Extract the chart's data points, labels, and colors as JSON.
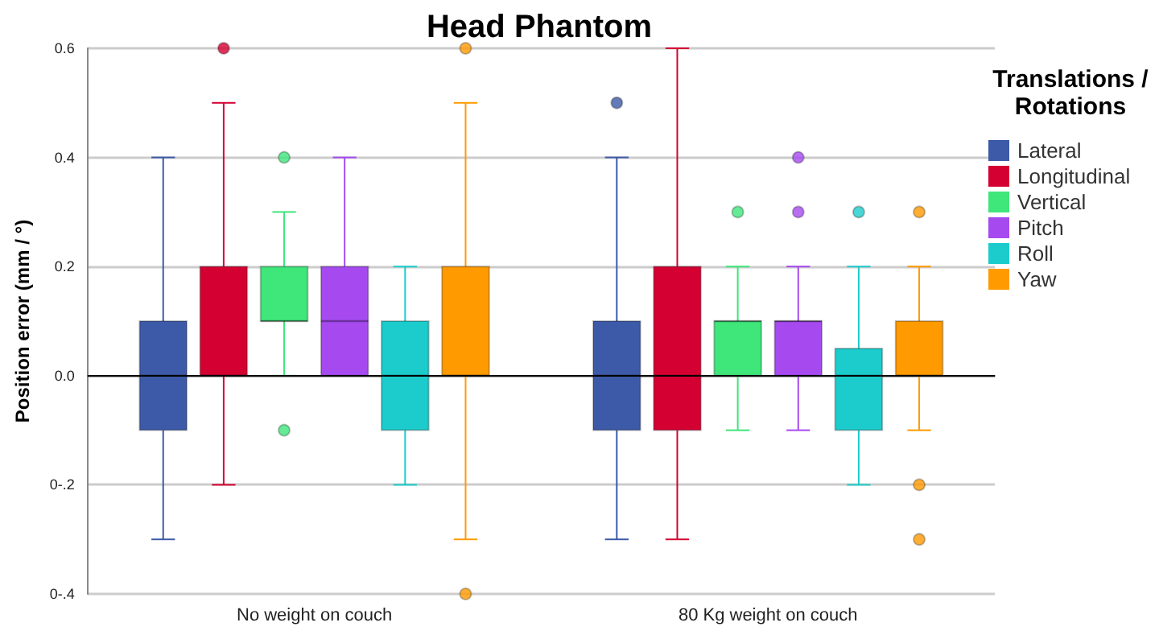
{
  "chart_data": {
    "type": "box",
    "title": "Head Phantom",
    "ylabel": "Position error (mm / °)",
    "legend_title": "Translations / Rotations",
    "categories": [
      "No weight on couch",
      "80 Kg weight on couch"
    ],
    "series": [
      {
        "name": "Lateral",
        "color": "#3d5aa8",
        "boxes": [
          {
            "low": -0.3,
            "q1": -0.1,
            "median": 0,
            "q3": 0.1,
            "high": 0.4
          },
          {
            "low": -0.3,
            "q1": -0.1,
            "median": 0,
            "q3": 0.1,
            "high": 0.4,
            "outliers": [
              0.5
            ]
          }
        ]
      },
      {
        "name": "Longitudinal",
        "color": "#d50032",
        "boxes": [
          {
            "low": -0.2,
            "q1": 0,
            "median": 0,
            "q3": 0.2,
            "high": 0.5,
            "outliers": [
              0.6
            ]
          },
          {
            "low": -0.3,
            "q1": -0.1,
            "median": 0,
            "q3": 0.2,
            "high": 0.6
          }
        ]
      },
      {
        "name": "Vertical",
        "color": "#3fe67a",
        "boxes": [
          {
            "low": 0,
            "q1": 0.1,
            "median": 0.1,
            "q3": 0.2,
            "high": 0.3,
            "outliers": [
              0.4,
              -0.1
            ]
          },
          {
            "low": -0.1,
            "q1": 0,
            "median": 0.1,
            "q3": 0.1,
            "high": 0.2,
            "outliers": [
              0.3
            ]
          }
        ]
      },
      {
        "name": "Pitch",
        "color": "#a64af0",
        "boxes": [
          {
            "low": 0,
            "q1": 0,
            "median": 0.1,
            "q3": 0.2,
            "high": 0.4
          },
          {
            "low": -0.1,
            "q1": 0,
            "median": 0.1,
            "q3": 0.1,
            "high": 0.2,
            "outliers": [
              0.3,
              0.4
            ]
          }
        ]
      },
      {
        "name": "Roll",
        "color": "#1ccccc",
        "boxes": [
          {
            "low": -0.2,
            "q1": -0.1,
            "median": 0,
            "q3": 0.1,
            "high": 0.2
          },
          {
            "low": -0.2,
            "q1": -0.1,
            "median": 0,
            "q3": 0.05,
            "high": 0.2,
            "outliers": [
              0.3
            ]
          }
        ]
      },
      {
        "name": "Yaw",
        "color": "#ff9a00",
        "boxes": [
          {
            "low": -0.3,
            "q1": 0,
            "median": 0,
            "q3": 0.2,
            "high": 0.5,
            "outliers": [
              0.6,
              -0.4
            ]
          },
          {
            "low": -0.1,
            "q1": 0,
            "median": 0,
            "q3": 0.1,
            "high": 0.2,
            "outliers": [
              0.3,
              -0.2,
              -0.3
            ]
          }
        ]
      }
    ],
    "ylim": [
      -0.4,
      0.6
    ],
    "yticks": [
      {
        "value": -0.4,
        "label": "0-.4"
      },
      {
        "value": -0.2,
        "label": "0-.2"
      },
      {
        "value": 0,
        "label": "0.0"
      },
      0.2,
      0.4,
      0.6
    ],
    "ref_lines": [
      {
        "axis": "y",
        "value": 0,
        "color": "#000000"
      }
    ],
    "grid": "y",
    "legend": "right",
    "marker": "circle"
  }
}
